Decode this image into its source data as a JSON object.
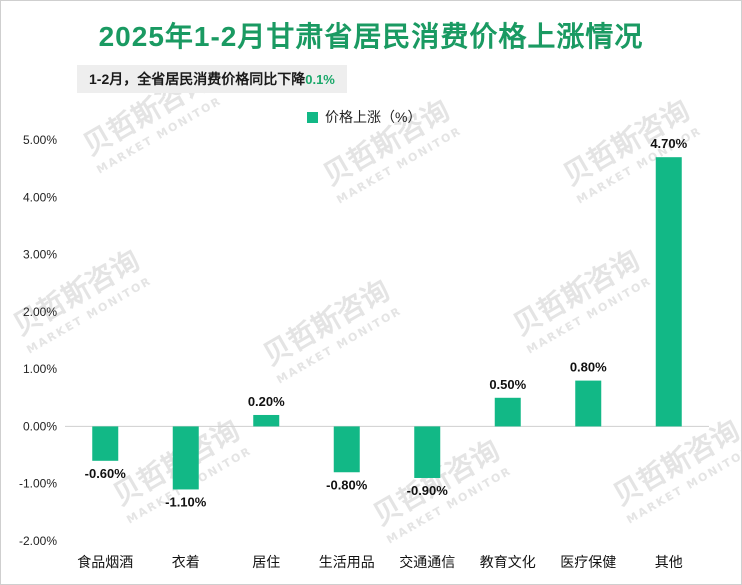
{
  "title": "2025年1-2月甘肃省居民消费价格上涨情况",
  "subtitle": {
    "text": "1-2月，全省居民消费价格同比下降",
    "value": "0.1%"
  },
  "watermark": {
    "cn": "贝哲斯咨询",
    "en": "MARKET MONITOR"
  },
  "colors": {
    "title": "#1a9a62",
    "bar": "#12b886",
    "subtitle_value": "#1aa86a"
  },
  "chart_data": {
    "type": "bar",
    "title": "2025年1-2月甘肃省居民消费价格上涨情况",
    "categories": [
      "食品烟酒",
      "衣着",
      "居住",
      "生活用品",
      "交通通信",
      "教育文化",
      "医疗保健",
      "其他"
    ],
    "series": [
      {
        "name": "价格上涨（%）",
        "values": [
          -0.6,
          -1.1,
          0.2,
          -0.8,
          -0.9,
          0.5,
          0.8,
          4.7
        ],
        "labels": [
          "-0.60%",
          "-1.10%",
          "0.20%",
          "-0.80%",
          "-0.90%",
          "0.50%",
          "0.80%",
          "4.70%"
        ]
      }
    ],
    "ylim": [
      -2,
      5
    ],
    "yticks": [
      5,
      4,
      3,
      2,
      1,
      0,
      -1,
      -2
    ],
    "ytick_labels": [
      "5.00%",
      "4.00%",
      "3.00%",
      "2.00%",
      "1.00%",
      "0.00%",
      "-1.00%",
      "-2.00%"
    ],
    "legend": "top-center",
    "grid": false
  }
}
